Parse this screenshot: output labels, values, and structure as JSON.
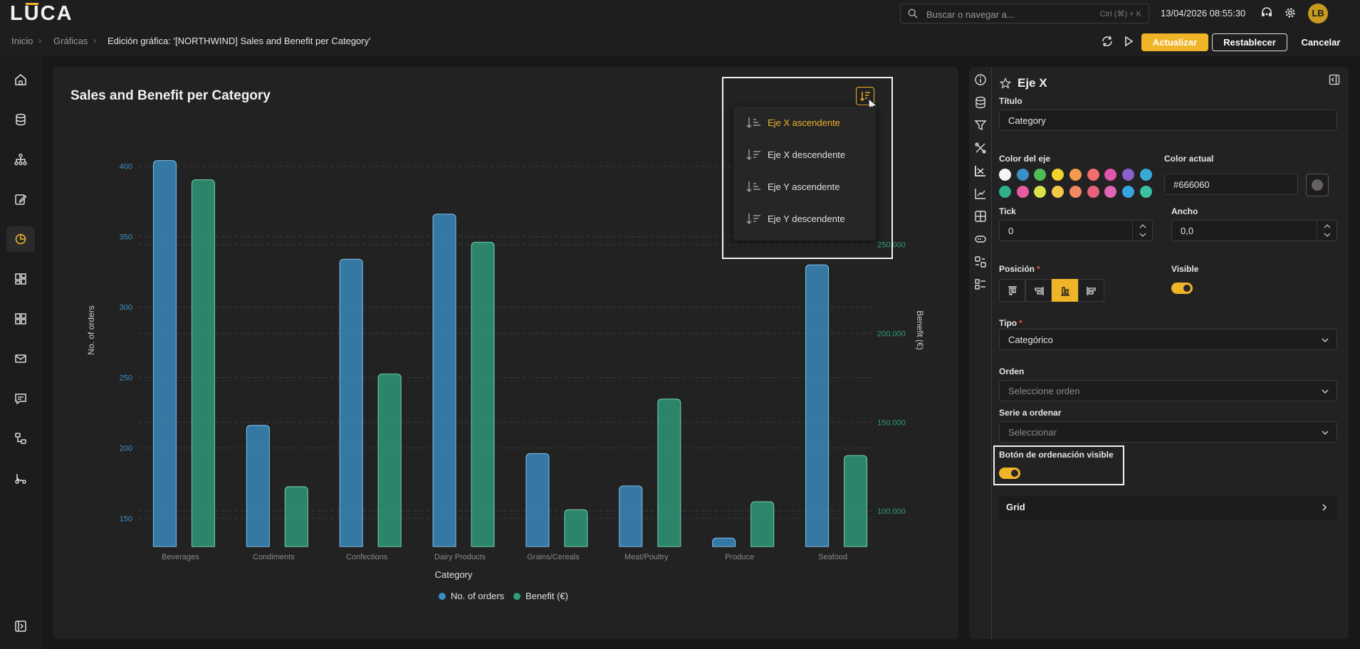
{
  "app": {
    "logo": "LUCA",
    "accent": "#f0b429"
  },
  "topbar": {
    "search_placeholder": "Buscar o navegar a...",
    "search_shortcut": "Ctrl (⌘) + K",
    "datetime": "13/04/2026 08:55:30",
    "avatar_initials": "LB"
  },
  "breadcrumb": {
    "items": [
      "Inicio",
      "Gráficas",
      "Edición gráfica: '[NORTHWIND] Sales and Benefit per Category'"
    ]
  },
  "actions": {
    "update": "Actualizar",
    "reset": "Restablecer",
    "cancel": "Cancelar"
  },
  "chart_data": {
    "type": "bar",
    "title": "Sales and Benefit per Category",
    "xlabel": "Category",
    "categories": [
      "Beverages",
      "Condiments",
      "Confections",
      "Dairy Products",
      "Grains/Cereals",
      "Meat/Poultry",
      "Produce",
      "Seafood"
    ],
    "series": [
      {
        "name": "No. of orders",
        "axis": "left",
        "color": "#3a8fc4",
        "values": [
          404,
          216,
          334,
          366,
          196,
          173,
          136,
          330
        ]
      },
      {
        "name": "Benefit (€)",
        "axis": "right",
        "color": "#2f9e7e",
        "values": [
          286527,
          113694,
          177099,
          251330,
          100726,
          163022,
          105268,
          131261
        ]
      }
    ],
    "y_left": {
      "label": "No. of orders",
      "ticks": [
        "150",
        "200",
        "250",
        "300",
        "350",
        "400"
      ],
      "range": [
        130,
        420
      ]
    },
    "y_right": {
      "label": "Benefit (€)",
      "ticks": [
        "100.000",
        "150.000",
        "200.000",
        "250.000"
      ],
      "range": [
        80000,
        310000
      ]
    },
    "legend_position": "bottom-center",
    "grid": true
  },
  "sort_menu": {
    "items": [
      "Eje X ascendente",
      "Eje X descendente",
      "Eje Y ascendente",
      "Eje Y descendente"
    ],
    "active_index": 0
  },
  "panel": {
    "title": "Eje X",
    "fields": {
      "titulo_label": "Título",
      "titulo_value": "Category",
      "color_eje_label": "Color del eje",
      "color_actual_label": "Color actual",
      "color_actual_value": "#666060",
      "tick_label": "Tick",
      "tick_value": "0",
      "ancho_label": "Ancho",
      "ancho_value": "0,0",
      "posicion_label": "Posición",
      "visible_label": "Visible",
      "tipo_label": "Tipo",
      "tipo_value": "Categórico",
      "orden_label": "Orden",
      "orden_placeholder": "Seleccione orden",
      "serie_label": "Serie a ordenar",
      "serie_placeholder": "Seleccionar",
      "boton_orden_label": "Botón de ordenación visible",
      "grid_label": "Grid"
    },
    "palette": [
      "#f5f5f5",
      "#3a8fc4",
      "#4cbe55",
      "#f0d22c",
      "#f39a4d",
      "#f36d6d",
      "#e056a8",
      "#8a60cc",
      "#3aa9d8",
      "#2fae8a",
      "#e85aa2",
      "#d9e24a",
      "#f5c84a",
      "#f08866",
      "#e8607a",
      "#e066b8",
      "#35a6e0",
      "#3abfa0"
    ],
    "current_color": "#666060",
    "visible_on": true,
    "sort_button_visible_on": true
  }
}
